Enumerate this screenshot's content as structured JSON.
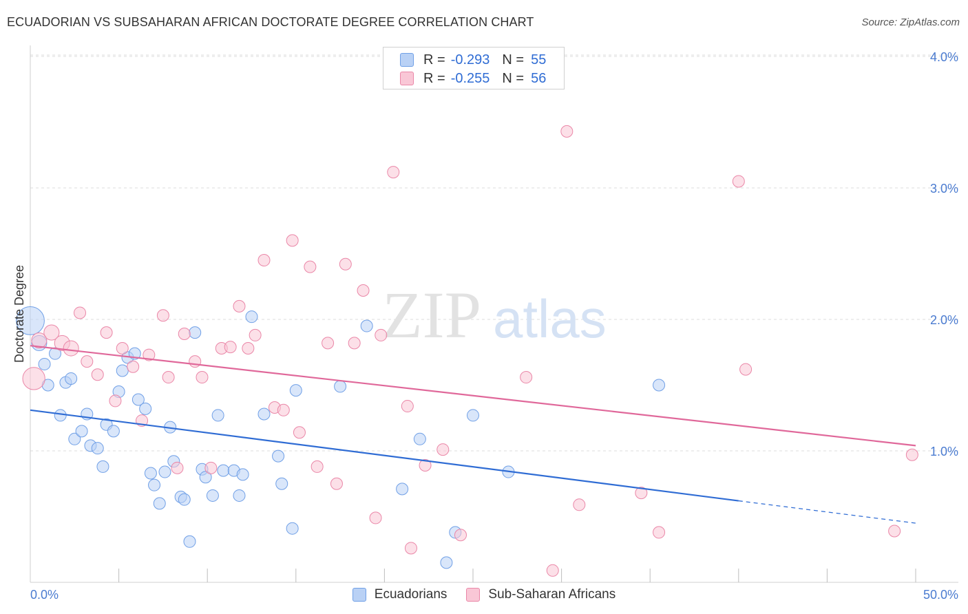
{
  "title": "ECUADORIAN VS SUBSAHARAN AFRICAN DOCTORATE DEGREE CORRELATION CHART",
  "source": "Source: ZipAtlas.com",
  "watermark": {
    "zip": "ZIP",
    "atlas": "atlas"
  },
  "legend": {
    "items": [
      {
        "r_label": "R =",
        "r_value": "-0.293",
        "n_label": "N =",
        "n_value": "55",
        "color": "#6f9fe6",
        "fill": "#b9d1f5"
      },
      {
        "r_label": "R =",
        "r_value": "-0.255",
        "n_label": "N =",
        "n_value": "56",
        "color": "#ea86a7",
        "fill": "#f9c7d6"
      }
    ]
  },
  "bottom_legend": [
    "Ecuadorians",
    "Sub-Saharan Africans"
  ],
  "chart_data": {
    "type": "scatter",
    "title": "ECUADORIAN VS SUBSAHARAN AFRICAN DOCTORATE DEGREE CORRELATION CHART",
    "xlabel": "",
    "ylabel": "Doctorate Degree",
    "xlim": [
      0,
      50
    ],
    "ylim": [
      0,
      4.2
    ],
    "x_tick_labels": [
      "0.0%",
      "50.0%"
    ],
    "y_ticks": [
      1.0,
      2.0,
      3.0,
      4.0
    ],
    "y_tick_labels": [
      "1.0%",
      "2.0%",
      "3.0%",
      "4.0%"
    ],
    "grid": "horizontal dashed",
    "legend_position": "top-center",
    "series": [
      {
        "name": "Ecuadorians",
        "color": "#6f9fe6",
        "fill": "#b9d1f5",
        "trend": {
          "x0": 0,
          "y0": 1.31,
          "x1": 40,
          "y1": 0.62,
          "dash_to_x": 50,
          "dash_to_y": 0.45
        },
        "points": [
          [
            0.0,
            1.99,
            2.4
          ],
          [
            0.5,
            1.82,
            1.3
          ],
          [
            0.8,
            1.66,
            1
          ],
          [
            1.0,
            1.5,
            1
          ],
          [
            1.4,
            1.74,
            1
          ],
          [
            1.7,
            1.27,
            1
          ],
          [
            2.0,
            1.52,
            1
          ],
          [
            2.3,
            1.55,
            1
          ],
          [
            2.5,
            1.09,
            1
          ],
          [
            2.9,
            1.15,
            1
          ],
          [
            3.2,
            1.28,
            1
          ],
          [
            3.4,
            1.04,
            1
          ],
          [
            3.8,
            1.02,
            1
          ],
          [
            4.1,
            0.88,
            1
          ],
          [
            4.3,
            1.2,
            1
          ],
          [
            4.7,
            1.15,
            1
          ],
          [
            5.0,
            1.45,
            1
          ],
          [
            5.2,
            1.61,
            1
          ],
          [
            5.5,
            1.71,
            1
          ],
          [
            5.9,
            1.74,
            1
          ],
          [
            6.1,
            1.39,
            1
          ],
          [
            6.5,
            1.32,
            1
          ],
          [
            6.8,
            0.83,
            1
          ],
          [
            7.0,
            0.74,
            1
          ],
          [
            7.3,
            0.6,
            1
          ],
          [
            7.6,
            0.84,
            1
          ],
          [
            7.9,
            1.18,
            1
          ],
          [
            8.1,
            0.92,
            1
          ],
          [
            8.5,
            0.65,
            1
          ],
          [
            8.7,
            0.63,
            1
          ],
          [
            9.0,
            0.31,
            1
          ],
          [
            9.3,
            1.9,
            1
          ],
          [
            9.7,
            0.86,
            1
          ],
          [
            9.9,
            0.8,
            1
          ],
          [
            10.3,
            0.66,
            1
          ],
          [
            10.6,
            1.27,
            1
          ],
          [
            10.9,
            0.85,
            1
          ],
          [
            11.5,
            0.85,
            1
          ],
          [
            11.8,
            0.66,
            1
          ],
          [
            12.0,
            0.82,
            1
          ],
          [
            12.5,
            2.02,
            1
          ],
          [
            13.2,
            1.28,
            1
          ],
          [
            14.0,
            0.96,
            1
          ],
          [
            14.2,
            0.75,
            1
          ],
          [
            14.8,
            0.41,
            1
          ],
          [
            15.0,
            1.46,
            1
          ],
          [
            17.5,
            1.49,
            1
          ],
          [
            19.0,
            1.95,
            1
          ],
          [
            21.0,
            0.71,
            1
          ],
          [
            22.0,
            1.09,
            1
          ],
          [
            24.0,
            0.38,
            1
          ],
          [
            23.5,
            0.15,
            1
          ],
          [
            25.0,
            1.27,
            1
          ],
          [
            27.0,
            0.84,
            1
          ],
          [
            35.5,
            1.5,
            1
          ]
        ]
      },
      {
        "name": "Sub-Saharan Africans",
        "color": "#ea86a7",
        "fill": "#f9c7d6",
        "trend": {
          "x0": 0,
          "y0": 1.8,
          "x1": 50,
          "y1": 1.04
        },
        "points": [
          [
            0.2,
            1.55,
            1.9
          ],
          [
            0.5,
            1.84,
            1.3
          ],
          [
            1.2,
            1.9,
            1.3
          ],
          [
            1.8,
            1.82,
            1.3
          ],
          [
            2.3,
            1.78,
            1.3
          ],
          [
            2.8,
            2.05,
            1
          ],
          [
            3.2,
            1.68,
            1
          ],
          [
            3.8,
            1.58,
            1
          ],
          [
            4.3,
            1.9,
            1
          ],
          [
            4.8,
            1.38,
            1
          ],
          [
            5.2,
            1.78,
            1
          ],
          [
            5.8,
            1.64,
            1
          ],
          [
            6.3,
            1.23,
            1
          ],
          [
            6.7,
            1.73,
            1
          ],
          [
            7.5,
            2.03,
            1
          ],
          [
            7.8,
            1.56,
            1
          ],
          [
            8.3,
            0.87,
            1
          ],
          [
            8.7,
            1.89,
            1
          ],
          [
            9.3,
            1.68,
            1
          ],
          [
            9.7,
            1.56,
            1
          ],
          [
            10.2,
            0.87,
            1
          ],
          [
            10.8,
            1.78,
            1
          ],
          [
            11.3,
            1.79,
            1
          ],
          [
            11.8,
            2.1,
            1
          ],
          [
            12.3,
            1.78,
            1
          ],
          [
            12.7,
            1.88,
            1
          ],
          [
            13.2,
            2.45,
            1
          ],
          [
            13.8,
            1.33,
            1
          ],
          [
            14.3,
            1.31,
            1
          ],
          [
            14.8,
            2.6,
            1
          ],
          [
            15.2,
            1.14,
            1
          ],
          [
            15.8,
            2.4,
            1
          ],
          [
            16.2,
            0.88,
            1
          ],
          [
            16.8,
            1.82,
            1
          ],
          [
            17.3,
            0.75,
            1
          ],
          [
            17.8,
            2.42,
            1
          ],
          [
            18.3,
            1.82,
            1
          ],
          [
            18.8,
            2.22,
            1
          ],
          [
            19.5,
            0.49,
            1
          ],
          [
            19.8,
            1.88,
            1
          ],
          [
            20.5,
            3.12,
            1
          ],
          [
            21.3,
            1.34,
            1
          ],
          [
            21.5,
            0.26,
            1
          ],
          [
            22.3,
            0.89,
            1
          ],
          [
            23.3,
            1.01,
            1
          ],
          [
            24.3,
            0.36,
            1
          ],
          [
            28.0,
            1.56,
            1
          ],
          [
            29.5,
            0.09,
            1
          ],
          [
            30.3,
            3.43,
            1
          ],
          [
            31.0,
            0.59,
            1
          ],
          [
            34.5,
            0.68,
            1
          ],
          [
            35.5,
            0.38,
            1
          ],
          [
            40.0,
            3.05,
            1
          ],
          [
            40.4,
            1.62,
            1
          ],
          [
            48.8,
            0.39,
            1
          ],
          [
            49.8,
            0.97,
            1
          ]
        ]
      }
    ]
  }
}
